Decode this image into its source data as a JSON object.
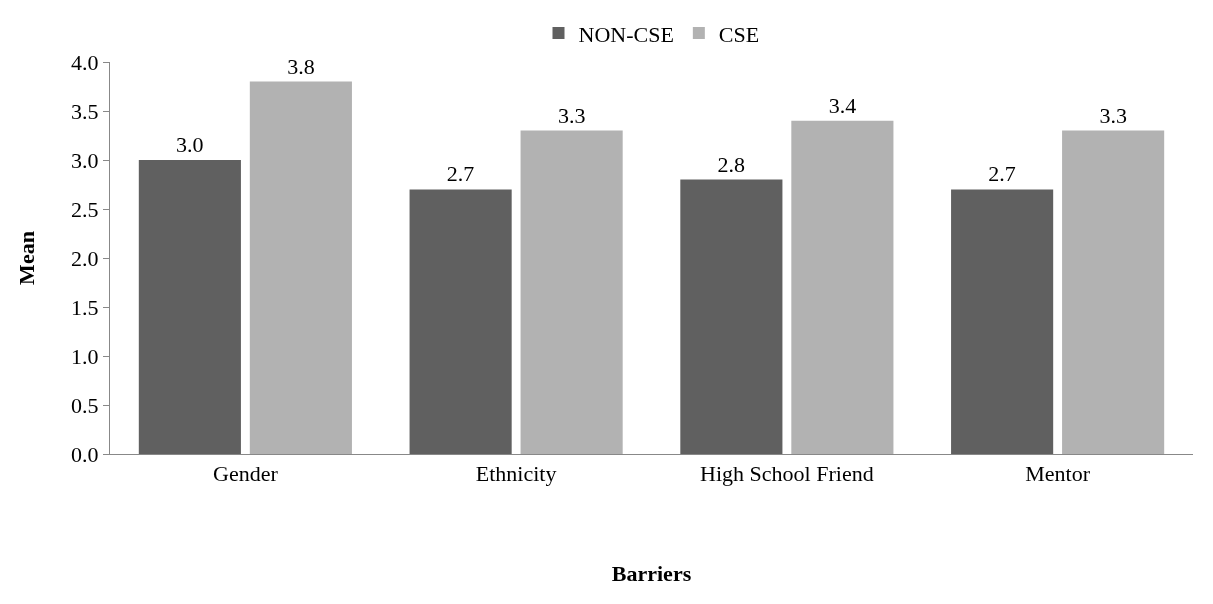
{
  "chart_data": {
    "type": "bar",
    "xlabel": "Barriers",
    "ylabel": "Mean",
    "categories": [
      "Gender",
      "Ethnicity",
      "High School Friend",
      "Mentor"
    ],
    "series": [
      {
        "name": "NON-CSE",
        "color": "#606060",
        "values": [
          3.0,
          2.7,
          2.8,
          2.7
        ],
        "value_labels": [
          "3.0",
          "2.7",
          "2.8",
          "2.7"
        ]
      },
      {
        "name": "CSE",
        "color": "#b2b2b2",
        "values": [
          3.8,
          3.3,
          3.4,
          3.3
        ],
        "value_labels": [
          "3.8",
          "3.3",
          "3.4",
          "3.3"
        ]
      }
    ],
    "ylim": [
      0,
      4
    ],
    "yticks": [
      {
        "value": 0,
        "label": "0.0"
      },
      {
        "value": 0.5,
        "label": "0.5"
      },
      {
        "value": 1,
        "label": "1.0"
      },
      {
        "value": 1.5,
        "label": "1.5"
      },
      {
        "value": 2,
        "label": "2.0"
      },
      {
        "value": 2.5,
        "label": "2.5"
      },
      {
        "value": 3,
        "label": "3.0"
      },
      {
        "value": 3.5,
        "label": "3.5"
      },
      {
        "value": 4,
        "label": "4.0"
      }
    ],
    "legend": "top"
  }
}
